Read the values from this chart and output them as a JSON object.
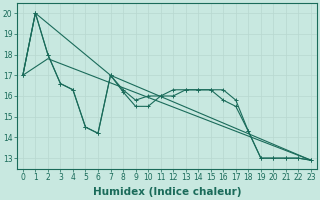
{
  "title": "",
  "xlabel": "Humidex (Indice chaleur)",
  "ylabel": "",
  "background_color": "#c8e8e0",
  "line_color": "#1a6b5a",
  "xlim": [
    -0.5,
    23.5
  ],
  "ylim": [
    12.5,
    20.5
  ],
  "yticks": [
    13,
    14,
    15,
    16,
    17,
    18,
    19,
    20
  ],
  "xticks": [
    0,
    1,
    2,
    3,
    4,
    5,
    6,
    7,
    8,
    9,
    10,
    11,
    12,
    13,
    14,
    15,
    16,
    17,
    18,
    19,
    20,
    21,
    22,
    23
  ],
  "grid_color": "#b8d8d0",
  "tick_fontsize": 5.5,
  "label_fontsize": 7.5,
  "line1_x": [
    0,
    1,
    2,
    3,
    4,
    5,
    6,
    7,
    8,
    9,
    10,
    11,
    12,
    13,
    14,
    15,
    16,
    17,
    18,
    19,
    20,
    21,
    22,
    23
  ],
  "line1_y": [
    17,
    20,
    18,
    16.6,
    16.3,
    14.5,
    14.2,
    17.0,
    16.3,
    15.8,
    16.0,
    16.0,
    16.3,
    16.3,
    16.3,
    16.3,
    16.3,
    15.8,
    14.3,
    13.0,
    13.0,
    13.0,
    13.0,
    12.9
  ],
  "line2_x": [
    0,
    1,
    2,
    3,
    4,
    5,
    6,
    7,
    8,
    9,
    10,
    11,
    12,
    13,
    14,
    15,
    16,
    17,
    18,
    19,
    20,
    21,
    22,
    23
  ],
  "line2_y": [
    17,
    20,
    18,
    16.6,
    16.3,
    14.5,
    14.2,
    17.0,
    16.2,
    15.5,
    15.5,
    16.0,
    16.0,
    16.3,
    16.3,
    16.3,
    15.8,
    15.5,
    14.3,
    13.0,
    13.0,
    13.0,
    13.0,
    12.9
  ],
  "line3_x": [
    0,
    2,
    23
  ],
  "line3_y": [
    17.0,
    17.8,
    12.9
  ],
  "line4_x": [
    0,
    1,
    7,
    23
  ],
  "line4_y": [
    17.0,
    20.0,
    17.0,
    12.9
  ]
}
